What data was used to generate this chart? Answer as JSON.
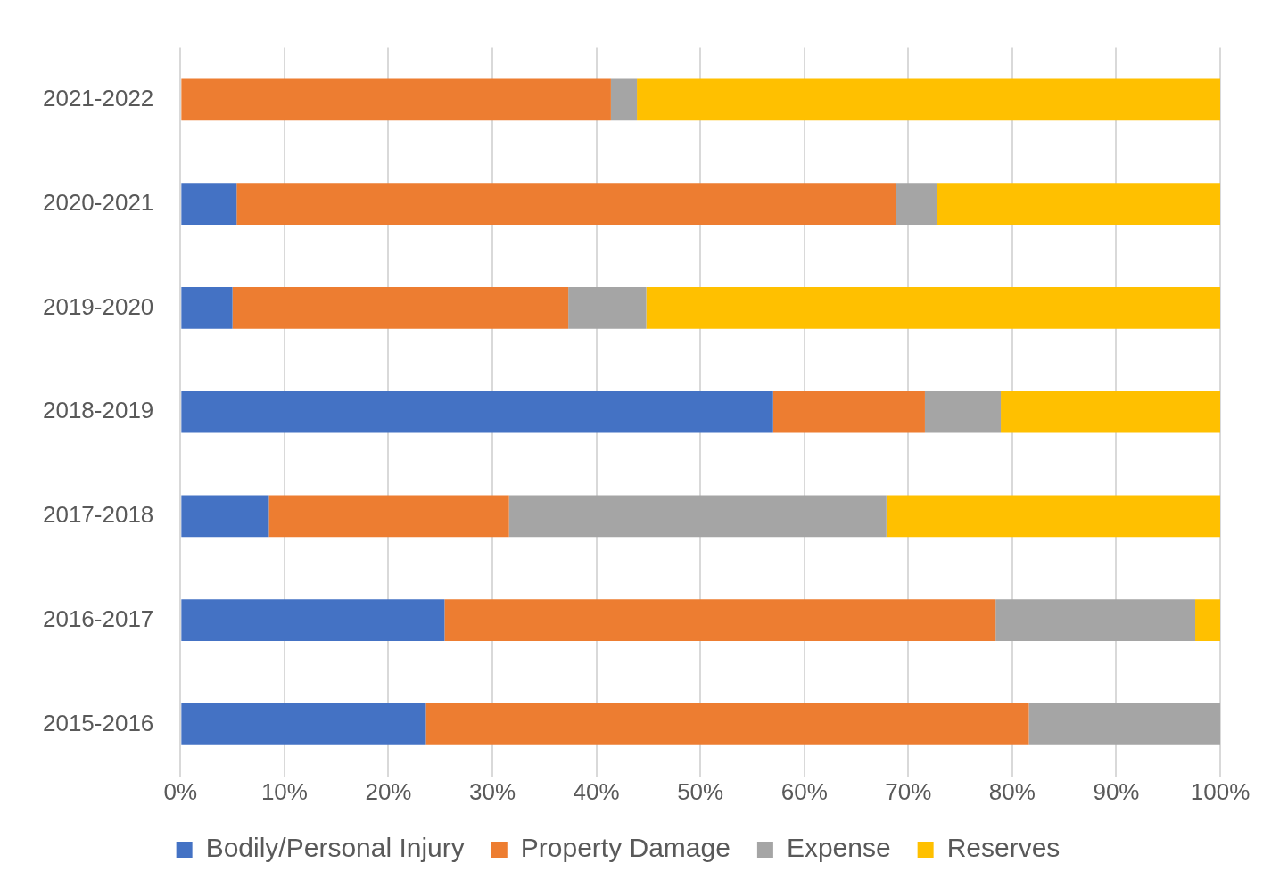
{
  "chart_data": {
    "type": "bar",
    "orientation": "horizontal",
    "stacked": true,
    "categories": [
      "2021-2022",
      "2020-2021",
      "2019-2020",
      "2018-2019",
      "2017-2018",
      "2016-2017",
      "2015-2016"
    ],
    "series": [
      {
        "name": "Bodily/Personal Injury",
        "color": "#4472c4",
        "values": [
          0,
          5.4,
          5.0,
          57.0,
          8.5,
          25.4,
          23.6
        ]
      },
      {
        "name": "Property Damage",
        "color": "#ed7d31",
        "values": [
          41.4,
          63.4,
          32.3,
          14.6,
          23.1,
          53.0,
          58.0
        ]
      },
      {
        "name": "Expense",
        "color": "#a5a5a5",
        "values": [
          2.5,
          4.0,
          7.5,
          7.3,
          36.3,
          19.2,
          18.4
        ]
      },
      {
        "name": "Reserves",
        "color": "#ffc000",
        "values": [
          56.1,
          27.2,
          55.2,
          21.1,
          32.1,
          2.4,
          0
        ]
      }
    ],
    "xlim": [
      0,
      100
    ],
    "xticks": [
      {
        "value": 0,
        "label": "0%"
      },
      {
        "value": 10,
        "label": "10%"
      },
      {
        "value": 20,
        "label": "20%"
      },
      {
        "value": 30,
        "label": "30%"
      },
      {
        "value": 40,
        "label": "40%"
      },
      {
        "value": 50,
        "label": "50%"
      },
      {
        "value": 60,
        "label": "60%"
      },
      {
        "value": 70,
        "label": "70%"
      },
      {
        "value": 80,
        "label": "80%"
      },
      {
        "value": 90,
        "label": "90%"
      },
      {
        "value": 100,
        "label": "100%"
      }
    ],
    "grid": "x",
    "legend": "bottom"
  }
}
